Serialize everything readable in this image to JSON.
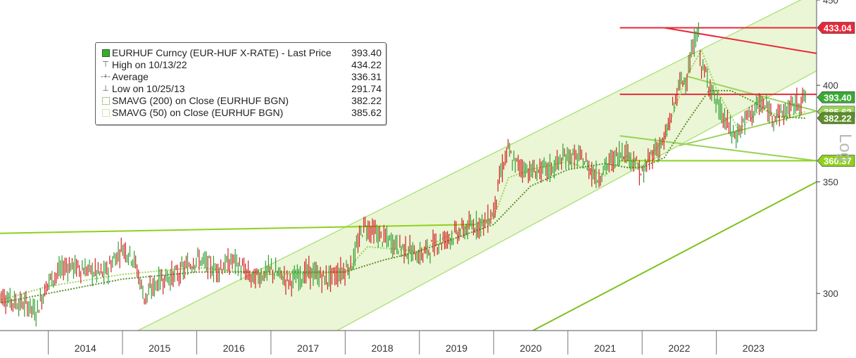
{
  "chart_data": {
    "type": "line",
    "ticker": "EURHUF Curncy (EUR-HUF X-RATE)",
    "y_scale": "log",
    "ylim": [
      285,
      450
    ],
    "y_ticks": [
      300,
      350,
      400,
      450
    ],
    "x_ticks": [
      "2014",
      "2015",
      "2016",
      "2017",
      "2018",
      "2019",
      "2020",
      "2021",
      "2022",
      "2023"
    ],
    "xlim": [
      2013.35,
      2024.35
    ],
    "legend": [
      {
        "label": "EURHUF Curncy (EUR-HUF X-RATE) - Last Price",
        "value": "393.40",
        "marker": "square"
      },
      {
        "label": "High on 10/13/22",
        "value": "434.22",
        "marker": "high"
      },
      {
        "label": "Average",
        "value": "336.31",
        "marker": "average"
      },
      {
        "label": "Low on 10/25/13",
        "value": "291.74",
        "marker": "low"
      },
      {
        "label": "SMAVG (200)  on Close (EURHUF BGN)",
        "value": "382.22",
        "marker": "dotted"
      },
      {
        "label": "SMAVG (50)  on Close (EURHUF BGN)",
        "value": "385.62",
        "marker": "dotted"
      }
    ],
    "legend_placement": "top-left",
    "price_tags": [
      {
        "value": 433.04,
        "text": "433.04",
        "color": "#e8283a"
      },
      {
        "value": 393.4,
        "text": "393.40",
        "color": "#3aaa35"
      },
      {
        "value": 385.62,
        "text": "385.62",
        "color": "#9cd35a"
      },
      {
        "value": 382.22,
        "text": "382.22",
        "color": "#5e8f2a"
      },
      {
        "value": 360.37,
        "text": "360.37",
        "color": "#8fd11c"
      }
    ],
    "series": [
      {
        "name": "EURHUF Curncy (EUR-HUF X-RATE) - Last Price",
        "x": [
          2013.33,
          2013.5,
          2013.75,
          2013.83,
          2014.0,
          2014.25,
          2014.5,
          2014.75,
          2015.0,
          2015.15,
          2015.3,
          2015.5,
          2015.75,
          2016.0,
          2016.25,
          2016.5,
          2016.75,
          2017.0,
          2017.25,
          2017.5,
          2017.75,
          2018.0,
          2018.1,
          2018.25,
          2018.5,
          2018.75,
          2019.0,
          2019.25,
          2019.5,
          2019.75,
          2019.9,
          2020.0,
          2020.1,
          2020.2,
          2020.25,
          2020.5,
          2020.75,
          2021.0,
          2021.2,
          2021.4,
          2021.5,
          2021.75,
          2021.9,
          2022.0,
          2022.15,
          2022.3,
          2022.5,
          2022.6,
          2022.75,
          2022.8,
          2022.9,
          2023.0,
          2023.1,
          2023.25,
          2023.4,
          2023.5,
          2023.6,
          2023.75,
          2023.9,
          2024.0,
          2024.2
        ],
        "values": [
          300,
          297,
          295,
          292,
          305,
          312,
          310,
          308,
          320,
          315,
          298,
          306,
          308,
          315,
          310,
          314,
          306,
          310,
          305,
          309,
          306,
          310,
          313,
          330,
          324,
          320,
          316,
          322,
          326,
          330,
          331,
          336,
          355,
          366,
          360,
          355,
          356,
          363,
          361,
          352,
          357,
          366,
          360,
          353,
          365,
          370,
          400,
          405,
          432,
          410,
          402,
          390,
          382,
          372,
          382,
          386,
          390,
          384,
          385,
          388,
          393.4
        ]
      },
      {
        "name": "SMAVG (200)  on Close (EURHUF BGN)",
        "x": [
          2013.33,
          2014.0,
          2015.0,
          2016.0,
          2017.0,
          2018.0,
          2018.5,
          2019.0,
          2019.5,
          2020.0,
          2020.5,
          2021.0,
          2021.5,
          2021.8,
          2022.0,
          2022.3,
          2022.6,
          2022.9,
          2023.2,
          2023.5,
          2023.8,
          2024.2
        ],
        "values": [
          296,
          300,
          306,
          309,
          309,
          309,
          314,
          318,
          324,
          330,
          348,
          356,
          359,
          357,
          357,
          362,
          380,
          397,
          397,
          391,
          383,
          382.22
        ]
      },
      {
        "name": "SMAVG (50)  on Close (EURHUF BGN)",
        "x": [
          2013.33,
          2014.0,
          2015.0,
          2016.0,
          2017.0,
          2018.0,
          2018.3,
          2019.0,
          2019.5,
          2020.0,
          2020.2,
          2020.5,
          2021.0,
          2021.5,
          2021.8,
          2022.0,
          2022.3,
          2022.6,
          2022.8,
          2023.0,
          2023.3,
          2023.6,
          2023.9,
          2024.2
        ],
        "values": [
          297,
          303,
          308,
          311,
          308,
          309,
          320,
          318,
          327,
          333,
          352,
          356,
          360,
          353,
          363,
          357,
          372,
          405,
          420,
          398,
          376,
          387,
          383,
          385.62
        ]
      }
    ],
    "horizontal_levels": [
      {
        "value": 433.04,
        "x_from": 2021.7,
        "x_to": 2024.35,
        "color": "#e8283a"
      },
      {
        "value": 395.0,
        "x_from": 2021.7,
        "x_to": 2024.35,
        "color": "#e8283a"
      },
      {
        "value": 360.37,
        "x_from": 2021.7,
        "x_to": 2024.35,
        "color": "#8fd11c"
      }
    ],
    "trendlines": [
      {
        "x": [
          2013.35,
          2019.75
        ],
        "values": [
          326,
          330
        ],
        "color": "#8fd11c"
      },
      {
        "x": [
          2022.3,
          2024.35
        ],
        "values": [
          433.04,
          418
        ],
        "color": "#e8283a"
      },
      {
        "x": [
          2022.6,
          2024.35
        ],
        "values": [
          405,
          386
        ],
        "color": "#9cd35a"
      },
      {
        "x": [
          2021.7,
          2024.35
        ],
        "values": [
          373,
          360.37
        ],
        "color": "#9cd35a"
      },
      {
        "x": [
          2022.5,
          2024.35
        ],
        "values": [
          368,
          386
        ],
        "color": "#9cd35a"
      },
      {
        "x": [
          2020.2,
          2024.35
        ],
        "values": [
          280,
          350
        ],
        "color": "#7dc21e"
      }
    ],
    "channel": {
      "upper": {
        "x": [
          2015.0,
          2024.35
        ],
        "values": [
          282,
          455
        ]
      },
      "lower": {
        "x": [
          2017.7,
          2024.35
        ],
        "values": [
          282,
          408
        ]
      },
      "fill": "#eaf6d6",
      "stroke": "#a8dc6a"
    },
    "grid": false,
    "watermark": "Log"
  }
}
